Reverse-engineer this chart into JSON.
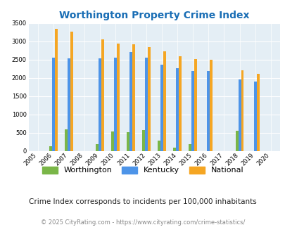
{
  "title": "Worthington Property Crime Index",
  "years": [
    2005,
    2006,
    2007,
    2008,
    2009,
    2010,
    2011,
    2012,
    2013,
    2014,
    2015,
    2016,
    2017,
    2018,
    2019,
    2020
  ],
  "worthington": [
    0,
    130,
    590,
    0,
    185,
    530,
    510,
    570,
    275,
    80,
    190,
    0,
    0,
    545,
    0,
    0
  ],
  "kentucky": [
    0,
    2550,
    2530,
    0,
    2530,
    2550,
    2700,
    2550,
    2370,
    2260,
    2180,
    2180,
    0,
    1960,
    1900,
    0
  ],
  "national": [
    0,
    3340,
    3260,
    0,
    3050,
    2950,
    2920,
    2850,
    2730,
    2600,
    2510,
    2490,
    0,
    2200,
    2120,
    0
  ],
  "worthington_color": "#7ab648",
  "kentucky_color": "#4d94e8",
  "national_color": "#f5a623",
  "ylim": [
    0,
    3500
  ],
  "yticks": [
    0,
    500,
    1000,
    1500,
    2000,
    2500,
    3000,
    3500
  ],
  "bg_color": "#e4eef5",
  "subtitle": "Crime Index corresponds to incidents per 100,000 inhabitants",
  "footer": "© 2025 CityRating.com - https://www.cityrating.com/crime-statistics/",
  "legend_labels": [
    "Worthington",
    "Kentucky",
    "National"
  ],
  "bar_width": 0.18
}
